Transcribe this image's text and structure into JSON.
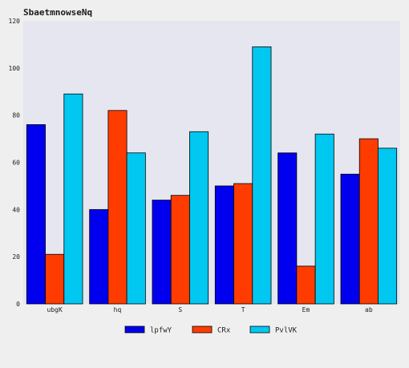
{
  "chart_data": {
    "type": "bar",
    "title": "SbaetmnowseNq",
    "xlabel": "",
    "ylabel": "",
    "categories": [
      "ubgK",
      "hq",
      "S",
      "T",
      "Em",
      "ab"
    ],
    "series": [
      {
        "name": "lpfwY",
        "color": "#0000ee",
        "values": [
          76,
          40,
          44,
          50,
          64,
          55
        ]
      },
      {
        "name": "CRx",
        "color": "#ff3c00",
        "values": [
          21,
          82,
          46,
          51,
          16,
          70
        ]
      },
      {
        "name": "PvlVK",
        "color": "#00c8f0",
        "values": [
          89,
          64,
          73,
          109,
          72,
          66
        ]
      }
    ],
    "ylim": [
      0,
      120
    ],
    "yticks": [
      0,
      20,
      40,
      60,
      80,
      100,
      120
    ],
    "grid": false,
    "legend_position": "bottom",
    "colors": {
      "figure_background": "#efefef",
      "plot_background": "#e6e6f0",
      "bar_edge": "#000000"
    }
  }
}
